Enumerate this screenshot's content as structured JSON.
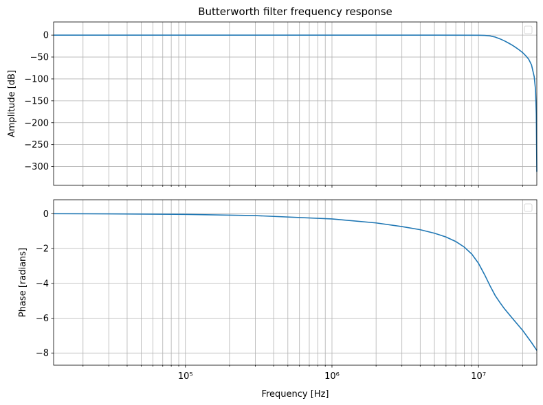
{
  "chart_data": [
    {
      "type": "line",
      "title": "Butterworth filter frequency response",
      "xlabel": "",
      "ylabel": "Amplitude [dB]",
      "xscale": "log",
      "xlim": [
        12600,
        25000000
      ],
      "ylim": [
        -343,
        30
      ],
      "yticks": [
        0,
        -50,
        -100,
        -150,
        -200,
        -250,
        -300
      ],
      "ytick_labels": [
        "0",
        "−50",
        "−100",
        "−150",
        "−200",
        "−250",
        "−300"
      ],
      "grid": true,
      "legend": "top-right (empty)",
      "series": [
        {
          "x": [
            12600,
            100000,
            1000000,
            5000000,
            10000000,
            11000000,
            12000000,
            13000000,
            14000000,
            15000000,
            16000000,
            17000000,
            18000000,
            19000000,
            20000000,
            21000000,
            22000000,
            23000000,
            24000000,
            24500000,
            24800000,
            25000000
          ],
          "y": [
            0,
            0,
            0,
            0,
            -0.2,
            -0.6,
            -1.8,
            -4.5,
            -8.5,
            -13,
            -18,
            -23,
            -28.5,
            -34,
            -40,
            -47,
            -55,
            -68,
            -95,
            -125,
            -180,
            -312
          ],
          "color": "#1f77b4"
        }
      ]
    },
    {
      "type": "line",
      "title": "",
      "xlabel": "Frequency [Hz]",
      "ylabel": "Phase [radians]",
      "xscale": "log",
      "xlim": [
        12600,
        25000000
      ],
      "ylim": [
        -8.7,
        0.8
      ],
      "yticks": [
        0,
        -2,
        -4,
        -6,
        -8
      ],
      "ytick_labels": [
        "0",
        "−2",
        "−4",
        "−6",
        "−8"
      ],
      "xtick_labels": [
        "10⁵",
        "10⁶",
        "10⁷"
      ],
      "grid": true,
      "legend": "top-right (empty)",
      "series": [
        {
          "x": [
            12600,
            30000,
            100000,
            300000,
            1000000,
            2000000,
            3000000,
            4000000,
            5000000,
            6000000,
            7000000,
            8000000,
            9000000,
            10000000,
            11000000,
            12000000,
            13000000,
            14000000,
            15000000,
            17000000,
            20000000,
            23000000,
            25000000
          ],
          "y": [
            0.0,
            -0.01,
            -0.04,
            -0.11,
            -0.3,
            -0.53,
            -0.74,
            -0.92,
            -1.12,
            -1.34,
            -1.6,
            -1.92,
            -2.32,
            -2.85,
            -3.5,
            -4.15,
            -4.7,
            -5.1,
            -5.45,
            -6.0,
            -6.7,
            -7.4,
            -7.85
          ],
          "color": "#1f77b4"
        }
      ]
    }
  ]
}
